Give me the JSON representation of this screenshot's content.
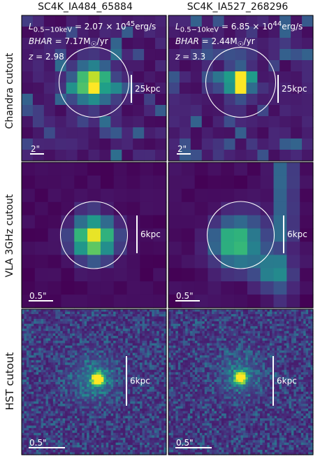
{
  "columns": [
    {
      "title": "SC4K_IA484_65884"
    },
    {
      "title": "SC4K_IA527_268296"
    }
  ],
  "rows": [
    {
      "label": "Chandra cutout"
    },
    {
      "label": "VLA 3GHz cutout"
    },
    {
      "label": "HST cutout"
    }
  ],
  "annotations": [
    {
      "lum_html": "L<sub>0.5−10keV</sub> = 2.07 × 10<sup>45</sup>erg/s",
      "bhar_html": "BHAR = 7.17M<sub>☉</sub>/yr",
      "z_html": "z = 2.98"
    },
    {
      "lum_html": "L<sub>0.5−10keV</sub> = 6.85 × 10<sup>44</sup>erg/s",
      "bhar_html": "BHAR = 2.44M<sub>☉</sub>/yr",
      "z_html": "z = 3.3"
    }
  ],
  "scale_labels": [
    {
      "scalebar": "2\"",
      "physical": "25kpc"
    },
    {
      "scalebar": "0.5\"",
      "physical": "6kpc"
    },
    {
      "scalebar": "0.5\"",
      "physical": "6kpc"
    }
  ],
  "colors": {
    "background": "#440154",
    "bright": "#fde725",
    "panel_border": "#000000",
    "overlay": "#ffffff"
  }
}
